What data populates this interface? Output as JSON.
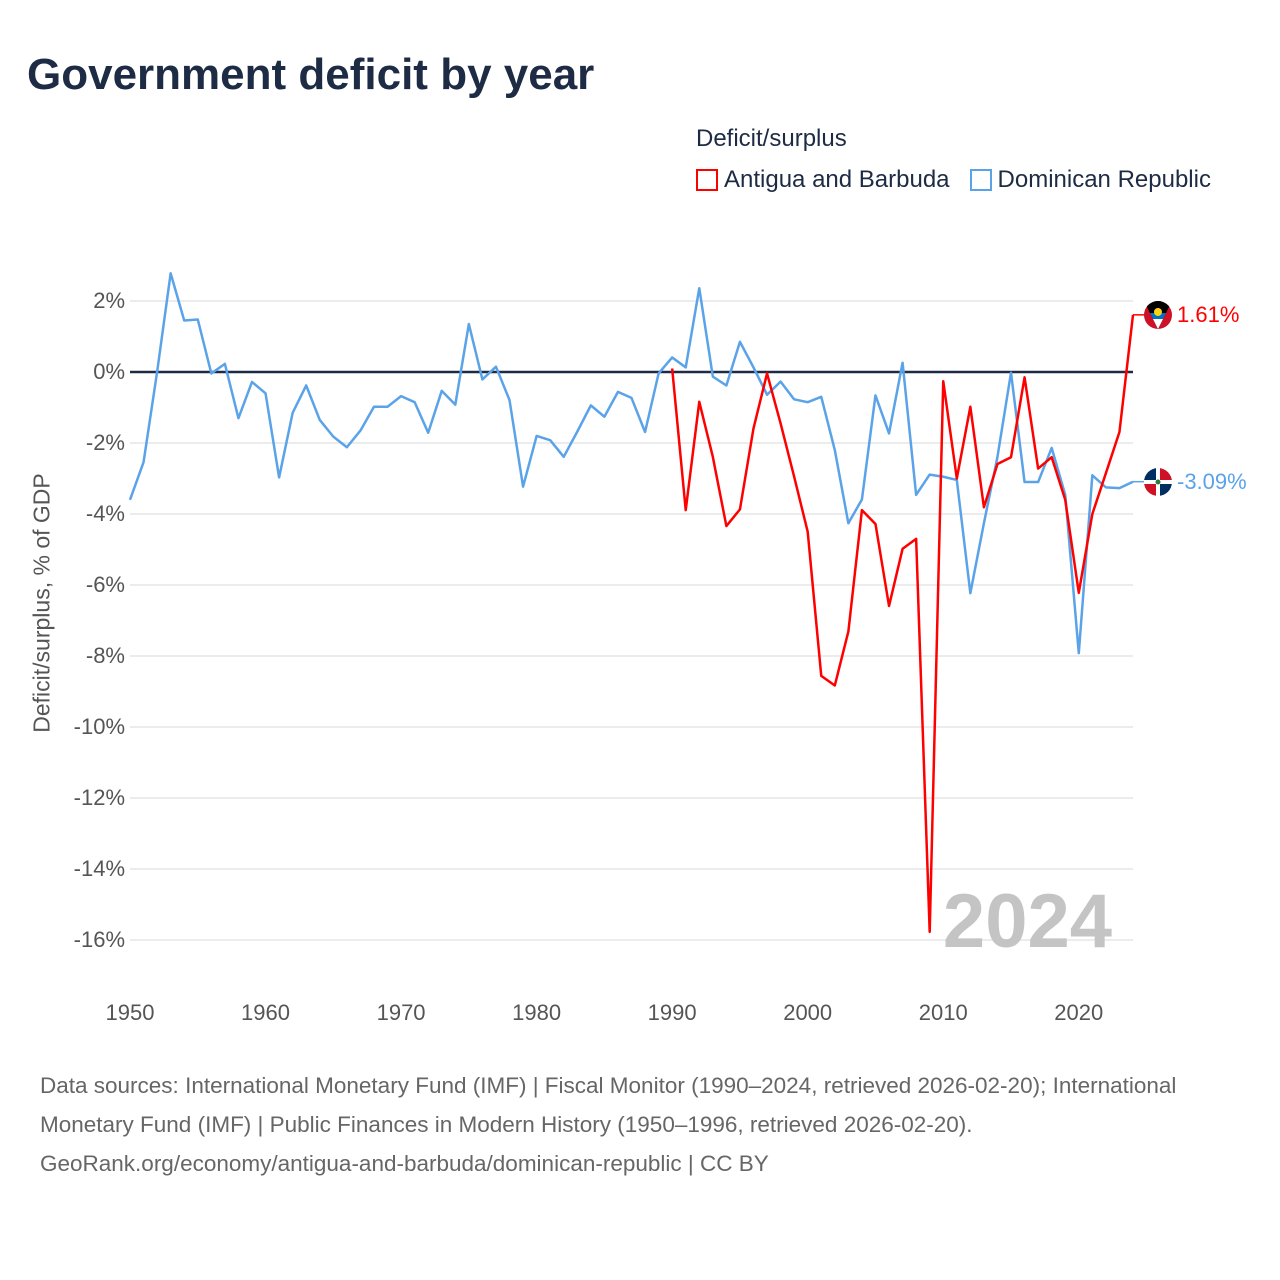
{
  "title": "Government deficit by year",
  "legend": {
    "title": "Deficit/surplus",
    "items": [
      {
        "label": "Antigua and Barbuda",
        "color": "#ff0000"
      },
      {
        "label": "Dominican Republic",
        "color": "#5ba3e8"
      }
    ]
  },
  "year_watermark": "2024",
  "chart_data": {
    "type": "line",
    "title": "Government deficit by year",
    "xlabel": "",
    "ylabel": "Deficit/surplus, % of GDP",
    "xlim": [
      1950,
      2024
    ],
    "ylim": [
      -16,
      2
    ],
    "yticks": [
      2,
      0,
      -2,
      -4,
      -6,
      -8,
      -10,
      -12,
      -14,
      -16
    ],
    "ytick_labels": [
      "2%",
      "0%",
      "-2%",
      "-4%",
      "-6%",
      "-8%",
      "-10%",
      "-12%",
      "-14%",
      "-16%"
    ],
    "xticks": [
      1950,
      1960,
      1970,
      1980,
      1990,
      2000,
      2010,
      2020
    ],
    "xtick_labels": [
      "1950",
      "1960",
      "1970",
      "1980",
      "1990",
      "2000",
      "2010",
      "2020"
    ],
    "grid": true,
    "legend_position": "top-right",
    "series": [
      {
        "name": "Antigua and Barbuda",
        "color": "#ff0000",
        "end_label": "1.61%",
        "x_start": 1990,
        "values": [
          0.1,
          -3.89,
          -0.84,
          -2.39,
          -4.34,
          -3.87,
          -1.59,
          -0.04,
          -1.45,
          -2.95,
          -4.5,
          -8.56,
          -8.83,
          -7.31,
          -3.89,
          -4.28,
          -6.59,
          -4.98,
          -4.7,
          -15.77,
          -0.26,
          -3.0,
          -0.98,
          -3.81,
          -2.59,
          -2.4,
          -0.15,
          -2.72,
          -2.4,
          -3.6,
          -6.22,
          -4.0,
          -2.85,
          -1.69,
          1.61
        ]
      },
      {
        "name": "Dominican Republic",
        "color": "#5ba3e8",
        "end_label": "-3.09%",
        "x_start": 1950,
        "values": [
          -3.6,
          -2.54,
          0.0,
          2.78,
          1.45,
          1.48,
          -0.04,
          0.23,
          -1.3,
          -0.28,
          -0.6,
          -2.97,
          -1.15,
          -0.38,
          -1.35,
          -1.82,
          -2.12,
          -1.65,
          -0.98,
          -0.98,
          -0.68,
          -0.85,
          -1.71,
          -0.53,
          -0.92,
          1.35,
          -0.21,
          0.15,
          -0.79,
          -3.23,
          -1.8,
          -1.92,
          -2.39,
          -1.68,
          -0.94,
          -1.26,
          -0.56,
          -0.73,
          -1.69,
          -0.04,
          0.41,
          0.13,
          2.36,
          -0.13,
          -0.38,
          0.85,
          0.13,
          -0.64,
          -0.27,
          -0.77,
          -0.85,
          -0.7,
          -2.2,
          -4.26,
          -3.59,
          -0.66,
          -1.73,
          0.26,
          -3.46,
          -2.89,
          -2.95,
          -3.04,
          -6.23,
          -4.26,
          -2.39,
          -0.02,
          -3.1,
          -3.1,
          -2.14,
          -3.46,
          -7.92,
          -2.91,
          -3.25,
          -3.27,
          -3.09
        ]
      }
    ]
  },
  "footer": {
    "sources": "Data sources: International Monetary Fund (IMF) | Fiscal Monitor (1990–2024, retrieved 2026-02-20); International Monetary Fund (IMF) | Public Finances in Modern History (1950–1996, retrieved 2026-02-20).",
    "credit": "GeoRank.org/economy/antigua-and-barbuda/dominican-republic | CC BY"
  }
}
